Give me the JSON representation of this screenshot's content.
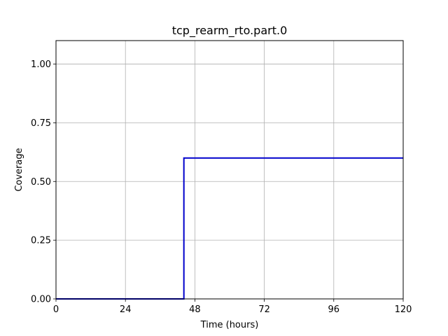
{
  "chart_data": {
    "type": "line",
    "title": "tcp_rearm_rto.part.0",
    "xlabel": "Time (hours)",
    "ylabel": "Coverage",
    "xlim": [
      0,
      120
    ],
    "ylim": [
      0,
      1.1
    ],
    "xticks": [
      0,
      24,
      48,
      72,
      96,
      120
    ],
    "xtick_labels": [
      "0",
      "24",
      "48",
      "72",
      "96",
      "120"
    ],
    "yticks": [
      0,
      0.25,
      0.5,
      0.75,
      1.0
    ],
    "ytick_labels": [
      "0.00",
      "0.25",
      "0.50",
      "0.75",
      "1.00"
    ],
    "grid": true,
    "series": [
      {
        "color": "#0000cc",
        "step": true,
        "x": [
          0,
          44.2,
          44.2,
          120
        ],
        "y": [
          0,
          0,
          0.6,
          0.6
        ]
      }
    ]
  }
}
